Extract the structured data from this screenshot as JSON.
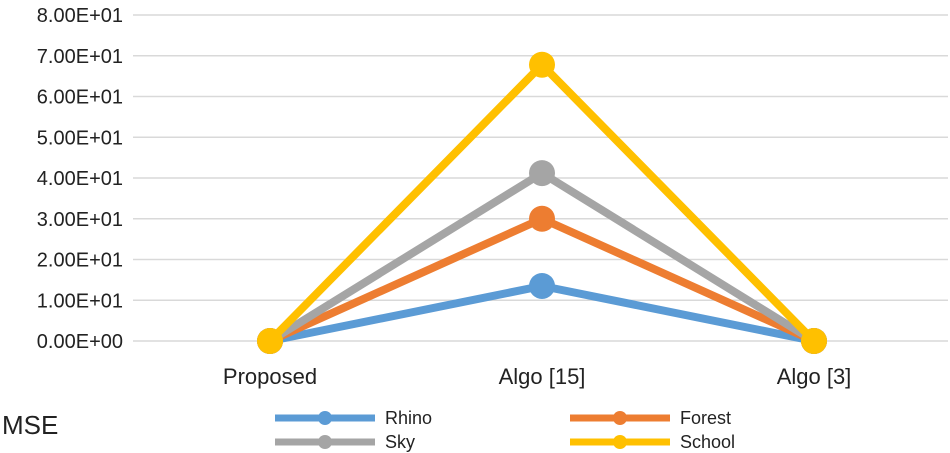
{
  "chart_data": {
    "type": "line",
    "title": "",
    "xlabel": "",
    "ylabel": "",
    "categories": [
      "Proposed",
      "Algo [15]",
      "Algo [3]"
    ],
    "y_tick_labels": [
      "0.00E+00",
      "1.00E+01",
      "2.00E+01",
      "3.00E+01",
      "4.00E+01",
      "5.00E+01",
      "6.00E+01",
      "7.00E+01",
      "8.00E+01"
    ],
    "ylim": [
      0,
      80
    ],
    "grid": true,
    "legend_placement": "bottom",
    "series": [
      {
        "name": "Rhino",
        "color": "#5b9bd5",
        "values": [
          0,
          13.5,
          0
        ]
      },
      {
        "name": "Forest",
        "color": "#ed7d31",
        "values": [
          0,
          30,
          0
        ]
      },
      {
        "name": "Sky",
        "color": "#a5a5a5",
        "values": [
          0,
          41.2,
          0
        ]
      },
      {
        "name": "School",
        "color": "#ffc000",
        "values": [
          0,
          67.8,
          0
        ]
      }
    ]
  },
  "side_label": "MSE"
}
